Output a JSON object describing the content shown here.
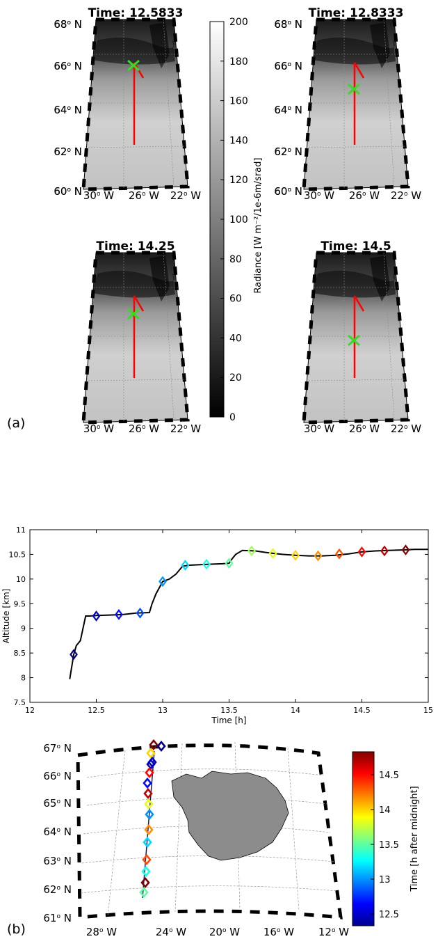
{
  "panel_a": {
    "label": "(a)",
    "colorbar": {
      "label": "Radiance [W m⁻²/1e-6m/srad]",
      "ticks": [
        "0",
        "20",
        "40",
        "60",
        "80",
        "100",
        "120",
        "140",
        "160",
        "180",
        "200"
      ]
    },
    "maps": [
      {
        "title": "Time: 12.5833"
      },
      {
        "title": "Time: 12.8333"
      },
      {
        "title": "Time: 14.25"
      },
      {
        "title": "Time:  14.5"
      }
    ],
    "lat_labels": [
      "68",
      "66",
      "64",
      "62",
      "60"
    ],
    "lon_labels": [
      "30",
      "26",
      "22"
    ],
    "deg": "o",
    "north": "N",
    "west": "W"
  },
  "panel_b": {
    "label": "(b)",
    "colorbar": {
      "label": "Time [h after midnight]",
      "ticks": [
        "12.5",
        "13",
        "13.5",
        "14",
        "14.5"
      ]
    },
    "map": {
      "lat_labels": [
        "67",
        "66",
        "65",
        "64",
        "63",
        "62",
        "61"
      ],
      "lon_labels": [
        "28",
        "24",
        "20",
        "16",
        "12"
      ]
    }
  },
  "chart_data": {
    "type": "line",
    "xlabel": "Time [h]",
    "ylabel": "Altitude [km]",
    "xlim": [
      12,
      15
    ],
    "ylim": [
      7.5,
      11
    ],
    "xticks": [
      "12",
      "12.5",
      "13",
      "13.5",
      "14",
      "14.5",
      "15"
    ],
    "yticks": [
      "7.5",
      "8",
      "8.5",
      "9",
      "9.5",
      "10",
      "10.5",
      "11"
    ],
    "grid": false,
    "series": [
      {
        "x": [
          12.3,
          12.32,
          12.33,
          12.35,
          12.38,
          12.42,
          12.45,
          12.5,
          12.6,
          12.7,
          12.8,
          12.9,
          12.92,
          12.95,
          13.0,
          13.05,
          13.1,
          13.15,
          13.2,
          13.35,
          13.45,
          13.5,
          13.52,
          13.55,
          13.6,
          13.7,
          13.8,
          13.9,
          14.0,
          14.1,
          14.2,
          14.3,
          14.4,
          14.5,
          14.6,
          14.7,
          14.8,
          14.9,
          15.0
        ],
        "y": [
          7.97,
          8.3,
          8.47,
          8.65,
          8.75,
          9.25,
          9.25,
          9.26,
          9.27,
          9.28,
          9.31,
          9.32,
          9.5,
          9.7,
          9.95,
          10.0,
          10.1,
          10.26,
          10.28,
          10.3,
          10.31,
          10.32,
          10.4,
          10.5,
          10.58,
          10.57,
          10.53,
          10.5,
          10.48,
          10.47,
          10.47,
          10.48,
          10.51,
          10.55,
          10.57,
          10.58,
          10.59,
          10.6,
          10.6
        ]
      }
    ],
    "markers": {
      "x": [
        12.33,
        12.5,
        12.67,
        12.83,
        13.0,
        13.17,
        13.33,
        13.5,
        13.67,
        13.83,
        14.0,
        14.17,
        14.33,
        14.5,
        14.67,
        14.83
      ],
      "y": [
        8.47,
        9.25,
        9.28,
        9.31,
        9.95,
        10.28,
        10.3,
        10.32,
        10.57,
        10.52,
        10.48,
        10.47,
        10.51,
        10.55,
        10.57,
        10.59
      ]
    },
    "colormap": "jet",
    "colormap_range": [
      12.33,
      14.83
    ]
  }
}
